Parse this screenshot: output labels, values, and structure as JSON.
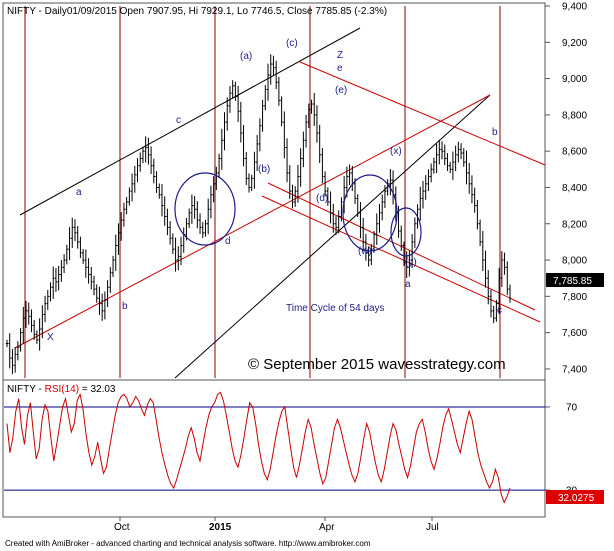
{
  "header": {
    "price_title": "NIFTY - Daily01/09/2015 Open 7907.95, Hi 7929.1, Lo 7746.5, Close 7785.85 (-2.3%)",
    "rsi_name": "NIFTY - ",
    "rsi_label": "RSI(14)",
    "rsi_value": " = 32.03"
  },
  "price_badge": "7,785.85",
  "rsi_badge": "32.0275",
  "watermark": "© September 2015 wavesstrategy.com",
  "cycle_note": "Time Cycle of 54 days",
  "footer": "Created with AmiBroker - advanced charting and technical analysis software. http://www.amibroker.com",
  "colors": {
    "price": "#000000",
    "rsi": "#cc0000",
    "trend_red": "#cc0000",
    "cycle_lines": "#8b0000",
    "channel_black": "#000000",
    "wave_labels": "#1c1c8a",
    "rsi_levels": "#000080",
    "badge_bg": "#000000",
    "rsi_badge_bg": "#dd0000"
  },
  "chart_data": [
    {
      "type": "line",
      "title": "",
      "style": "OHLC bars",
      "x_ticks": [
        "Oct",
        "2015",
        "Apr",
        "Jul"
      ],
      "ylim": [
        7350,
        9400
      ],
      "yticks": [
        7400,
        7600,
        7800,
        8000,
        8200,
        8400,
        8600,
        8800,
        9000,
        9200,
        9400
      ],
      "ytick_labels": [
        "7,400",
        "7,600",
        "7,800",
        "8,000",
        "8,200",
        "8,400",
        "8,600",
        "8,800",
        "9,000",
        "9,200",
        "9,400"
      ],
      "series": [
        {
          "values": [
            7540,
            7460,
            7420,
            7480,
            7520,
            7600,
            7680,
            7720,
            7690,
            7640,
            7590,
            7560,
            7620,
            7700,
            7760,
            7800,
            7850,
            7900,
            7880,
            7920,
            7960,
            8000,
            8060,
            8120,
            8180,
            8150,
            8100,
            8040,
            8000,
            7960,
            7920,
            7880,
            7840,
            7790,
            7760,
            7720,
            7780,
            7850,
            7930,
            8000,
            8080,
            8150,
            8220,
            8280,
            8320,
            8380,
            8420,
            8470,
            8520,
            8560,
            8600,
            8620,
            8580,
            8520,
            8460,
            8400,
            8360,
            8300,
            8240,
            8180,
            8120,
            8060,
            8000,
            8020,
            8080,
            8140,
            8200,
            8260,
            8300,
            8280,
            8220,
            8180,
            8150,
            8200,
            8280,
            8360,
            8420,
            8480,
            8560,
            8660,
            8760,
            8850,
            8920,
            8960,
            8900,
            8820,
            8700,
            8560,
            8450,
            8400,
            8450,
            8540,
            8640,
            8740,
            8850,
            8940,
            9020,
            9080,
            9060,
            8980,
            8880,
            8760,
            8620,
            8480,
            8380,
            8320,
            8380,
            8460,
            8560,
            8660,
            8760,
            8830,
            8860,
            8800,
            8700,
            8580,
            8460,
            8380,
            8320,
            8260,
            8200,
            8180,
            8240,
            8320,
            8400,
            8460,
            8480,
            8420,
            8340,
            8260,
            8180,
            8100,
            8040,
            8000,
            8060,
            8140,
            8200,
            8260,
            8320,
            8380,
            8420,
            8440,
            8360,
            8260,
            8160,
            8080,
            7990,
            7960,
            8000,
            8100,
            8200,
            8280,
            8340,
            8380,
            8420,
            8460,
            8500,
            8540,
            8580,
            8610,
            8600,
            8560,
            8520,
            8500,
            8540,
            8580,
            8610,
            8590,
            8540,
            8480,
            8420,
            8360,
            8300,
            8200,
            8100,
            8000,
            7900,
            7800,
            7720,
            7680,
            7760,
            7900,
            8000,
            7960,
            7840,
            7790
          ]
        }
      ],
      "wave_labels": [
        "X",
        "a",
        "b",
        "c",
        "d",
        "(a)",
        "(b)",
        "(c)",
        "(d)",
        "Z",
        "e",
        "(e)",
        "(w)",
        "(x)",
        "(y)",
        "a",
        "b",
        "c"
      ],
      "annotations": [
        "Time Cycle of 54 days",
        "© September 2015 wavesstrategy.com"
      ]
    },
    {
      "type": "line",
      "title": "",
      "ylim": [
        18,
        82
      ],
      "yticks": [
        70,
        30
      ],
      "levels": [
        70,
        30
      ],
      "series": [
        {
          "name": "RSI(14)",
          "values": [
            62,
            48,
            55,
            68,
            74,
            60,
            52,
            66,
            72,
            58,
            45,
            50,
            64,
            71,
            68,
            55,
            44,
            52,
            61,
            70,
            74,
            66,
            58,
            62,
            73,
            76,
            69,
            57,
            48,
            42,
            46,
            53,
            45,
            38,
            41,
            50,
            58,
            66,
            72,
            75,
            76,
            74,
            70,
            72,
            75,
            73,
            69,
            66,
            71,
            74,
            72,
            64,
            55,
            48,
            42,
            37,
            33,
            31,
            35,
            40,
            45,
            50,
            56,
            60,
            55,
            48,
            44,
            52,
            60,
            66,
            70,
            72,
            76,
            77,
            73,
            66,
            58,
            50,
            44,
            41,
            47,
            55,
            64,
            72,
            70,
            62,
            52,
            44,
            38,
            35,
            40,
            48,
            56,
            63,
            68,
            70,
            60,
            50,
            41,
            36,
            42,
            50,
            58,
            64,
            60,
            52,
            45,
            38,
            33,
            36,
            44,
            52,
            60,
            64,
            60,
            54,
            48,
            42,
            37,
            34,
            38,
            46,
            55,
            62,
            58,
            50,
            43,
            37,
            34,
            40,
            48,
            56,
            62,
            59,
            52,
            46,
            40,
            36,
            42,
            50,
            58,
            62,
            64,
            58,
            50,
            44,
            40,
            45,
            52,
            60,
            66,
            69,
            64,
            58,
            52,
            48,
            55,
            62,
            68,
            64,
            56,
            48,
            42,
            38,
            34,
            31,
            34,
            40,
            36,
            28,
            24,
            27,
            31
          ]
        }
      ]
    }
  ]
}
